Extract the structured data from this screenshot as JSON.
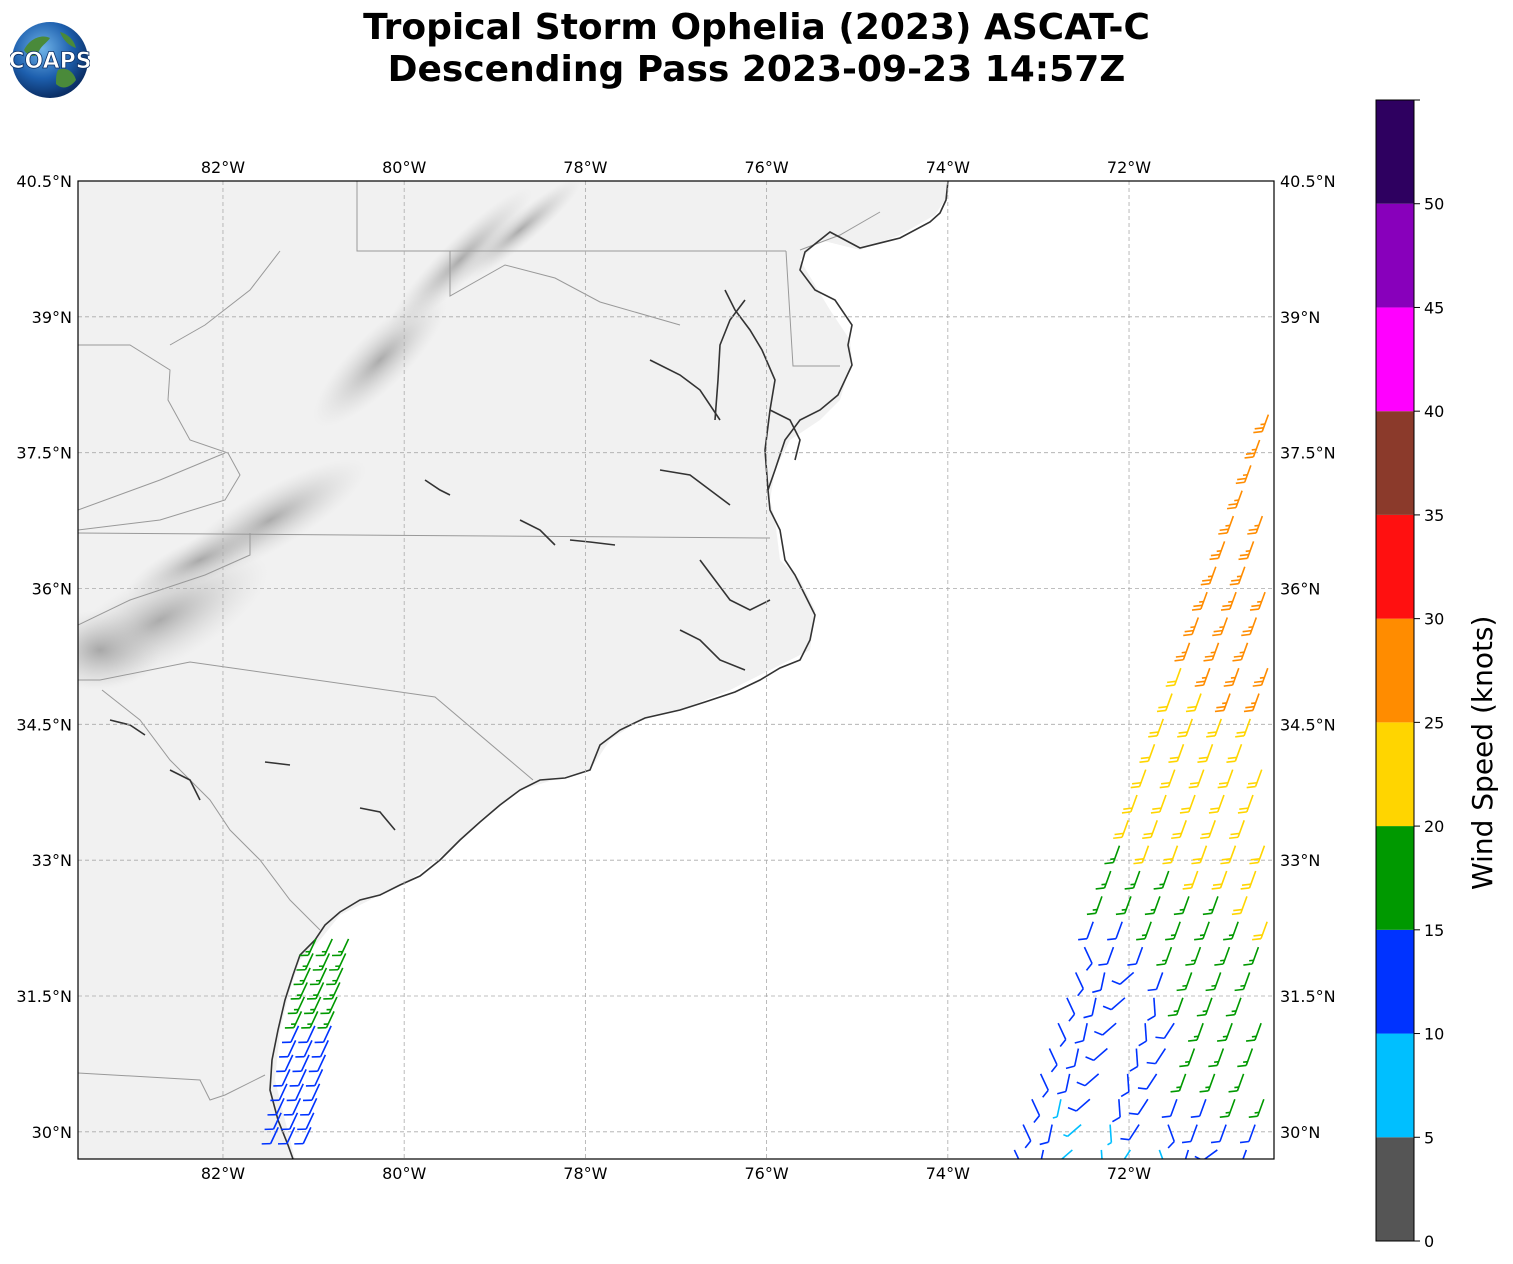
{
  "title": {
    "line1": "Tropical Storm Ophelia (2023) ASCAT-C",
    "line2": "Descending Pass 2023-09-23 14:57Z"
  },
  "logo": {
    "text": "COAPS",
    "icon": "globe-logo-icon"
  },
  "map": {
    "projection": "plate-carree",
    "lon_range": [
      -83.6,
      -70.4
    ],
    "lat_range": [
      29.7,
      40.5
    ],
    "lon_ticks": [
      -82,
      -80,
      -78,
      -76,
      -74,
      -72
    ],
    "lon_tick_labels": [
      "82°W",
      "80°W",
      "78°W",
      "76°W",
      "74°W",
      "72°W"
    ],
    "lat_ticks": [
      30,
      31.5,
      33,
      34.5,
      36,
      37.5,
      39,
      40.5
    ],
    "lat_tick_labels": [
      "30°N",
      "31.5°N",
      "33°N",
      "34.5°N",
      "36°N",
      "37.5°N",
      "39°N",
      "40.5°N"
    ],
    "gridlines": true,
    "background": "grayscale satellite cloud imagery over land",
    "coastline_color": "#333333",
    "border_color": "#999999"
  },
  "colorbar": {
    "label": "Wind Speed (knots)",
    "ticks": [
      0,
      5,
      10,
      15,
      20,
      25,
      30,
      35,
      40,
      45,
      50
    ],
    "tick_labels": [
      "0",
      "5",
      "10",
      "15",
      "20",
      "25",
      "30",
      "35",
      "40",
      "45",
      "50"
    ],
    "bins": [
      {
        "min": 0,
        "max": 5,
        "color": "#555555"
      },
      {
        "min": 5,
        "max": 10,
        "color": "#00bfff"
      },
      {
        "min": 10,
        "max": 15,
        "color": "#0033ff"
      },
      {
        "min": 15,
        "max": 20,
        "color": "#009900"
      },
      {
        "min": 20,
        "max": 25,
        "color": "#ffd500"
      },
      {
        "min": 25,
        "max": 30,
        "color": "#ff8c00"
      },
      {
        "min": 30,
        "max": 35,
        "color": "#ff1010"
      },
      {
        "min": 35,
        "max": 40,
        "color": "#8b3a2b"
      },
      {
        "min": 40,
        "max": 45,
        "color": "#ff00ff"
      },
      {
        "min": 45,
        "max": 50,
        "color": "#8800bb"
      },
      {
        "min": 50,
        "max": 55,
        "color": "#2e0060"
      }
    ]
  },
  "wind_swaths": {
    "near_coast": {
      "region": "Georgia/South Carolina coast",
      "lat_range": [
        30.0,
        32.2
      ],
      "colors_present": [
        "blue",
        "green"
      ]
    },
    "offshore": {
      "region": "east swath",
      "lat_range": [
        29.7,
        38.1
      ],
      "colors_present": [
        "blue",
        "green",
        "yellow",
        "orange"
      ]
    }
  }
}
